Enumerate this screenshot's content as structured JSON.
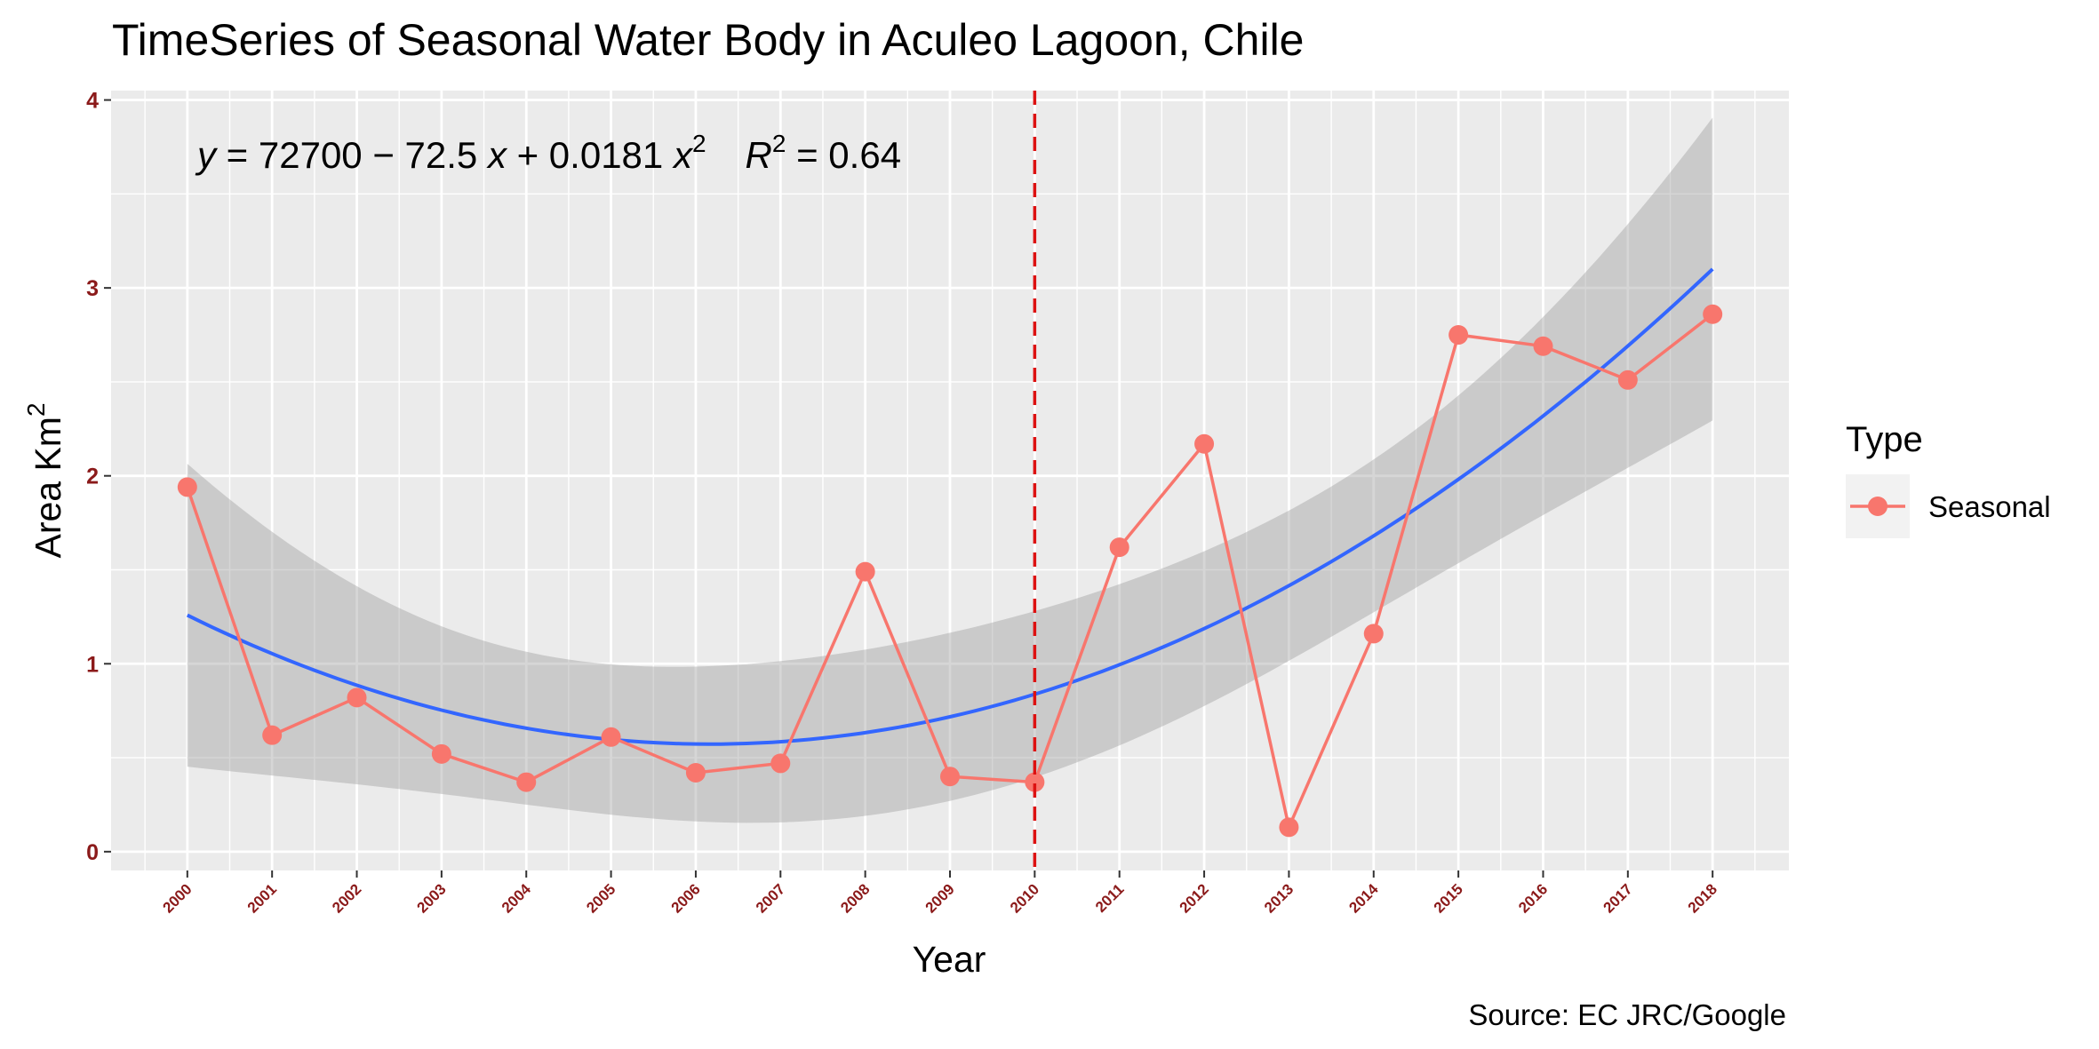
{
  "chart_data": {
    "type": "line",
    "title": "TimeSeries of  Seasonal Water Body in Aculeo Lagoon, Chile",
    "xlabel": "Year",
    "ylabel": "Area Km",
    "ylabel_superscript": "2",
    "caption": "Source: EC JRC/Google",
    "x": [
      2000,
      2001,
      2002,
      2003,
      2004,
      2005,
      2006,
      2007,
      2008,
      2009,
      2010,
      2011,
      2012,
      2013,
      2014,
      2015,
      2016,
      2017,
      2018
    ],
    "xlim": [
      1999.1,
      2018.9
    ],
    "ylim": [
      -0.1,
      4.05
    ],
    "yticks": [
      0,
      1,
      2,
      3,
      4
    ],
    "series": [
      {
        "name": "Seasonal",
        "color": "#F8766D",
        "values": [
          1.94,
          0.62,
          0.82,
          0.52,
          0.37,
          0.61,
          0.42,
          0.47,
          1.49,
          0.4,
          0.37,
          1.62,
          2.17,
          0.13,
          1.16,
          2.75,
          2.69,
          2.51,
          2.86
        ]
      }
    ],
    "fit": {
      "color": "#3366FF",
      "ci_color": "#999999",
      "equation_y": "y",
      "equation_rest": " = 72700 − 72.5 ",
      "equation_x": "x",
      "equation_plus": " + 0.0181 ",
      "equation_x2": "x",
      "equation_exp": "2",
      "r2_label": "R",
      "r2_exp": "2",
      "r2_value": " = 0.64"
    },
    "vline": {
      "x": 2010,
      "color": "#DD1111",
      "style": "dashed"
    },
    "legend": {
      "title": "Type",
      "entries": [
        "Seasonal"
      ],
      "position": "right"
    },
    "grid": true,
    "panel_background": "#EBEBEB"
  }
}
